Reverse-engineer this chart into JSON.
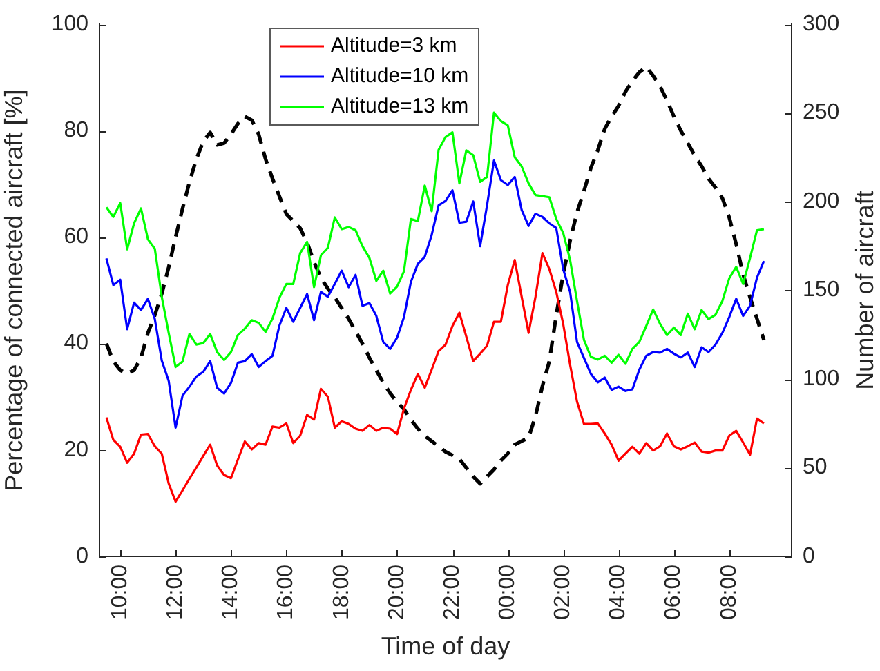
{
  "chart_data": {
    "type": "line",
    "xlabel": "Time of day",
    "ylabel": "Percentage of connected aircraft [%]",
    "y2label": "Number of aircraft",
    "legend": "top",
    "x": [
      "2000-01-01T09:30",
      "2000-01-01T09:45",
      "2000-01-01T10:00",
      "2000-01-01T10:15",
      "2000-01-01T10:30",
      "2000-01-01T10:45",
      "2000-01-01T11:00",
      "2000-01-01T11:15",
      "2000-01-01T11:30",
      "2000-01-01T11:45",
      "2000-01-01T12:00",
      "2000-01-01T12:15",
      "2000-01-01T12:30",
      "2000-01-01T12:45",
      "2000-01-01T13:00",
      "2000-01-01T13:15",
      "2000-01-01T13:30",
      "2000-01-01T13:45",
      "2000-01-01T14:00",
      "2000-01-01T14:15",
      "2000-01-01T14:30",
      "2000-01-01T14:45",
      "2000-01-01T15:00",
      "2000-01-01T15:15",
      "2000-01-01T15:30",
      "2000-01-01T15:45",
      "2000-01-01T16:00",
      "2000-01-01T16:15",
      "2000-01-01T16:30",
      "2000-01-01T16:45",
      "2000-01-01T17:00",
      "2000-01-01T17:15",
      "2000-01-01T17:30",
      "2000-01-01T17:45",
      "2000-01-01T18:00",
      "2000-01-01T18:15",
      "2000-01-01T18:30",
      "2000-01-01T18:45",
      "2000-01-01T19:00",
      "2000-01-01T19:15",
      "2000-01-01T19:30",
      "2000-01-01T19:45",
      "2000-01-01T20:00",
      "2000-01-01T20:15",
      "2000-01-01T20:30",
      "2000-01-01T20:45",
      "2000-01-01T21:00",
      "2000-01-01T21:15",
      "2000-01-01T21:30",
      "2000-01-01T21:45",
      "2000-01-01T22:00",
      "2000-01-01T22:15",
      "2000-01-01T22:30",
      "2000-01-01T22:45",
      "2000-01-01T23:00",
      "2000-01-01T23:15",
      "2000-01-01T23:30",
      "2000-01-01T23:45",
      "2000-01-02T00:00",
      "2000-01-02T00:15",
      "2000-01-02T00:30",
      "2000-01-02T00:45",
      "2000-01-02T01:00",
      "2000-01-02T01:15",
      "2000-01-02T01:30",
      "2000-01-02T01:45",
      "2000-01-02T02:00",
      "2000-01-02T02:15",
      "2000-01-02T02:30",
      "2000-01-02T02:45",
      "2000-01-02T03:00",
      "2000-01-02T03:15",
      "2000-01-02T03:30",
      "2000-01-02T03:45",
      "2000-01-02T04:00",
      "2000-01-02T04:15",
      "2000-01-02T04:30",
      "2000-01-02T04:45",
      "2000-01-02T05:00",
      "2000-01-02T05:15",
      "2000-01-02T05:30",
      "2000-01-02T05:45",
      "2000-01-02T06:00",
      "2000-01-02T06:15",
      "2000-01-02T06:30",
      "2000-01-02T06:45",
      "2000-01-02T07:00",
      "2000-01-02T07:15",
      "2000-01-02T07:30",
      "2000-01-02T07:45",
      "2000-01-02T08:00",
      "2000-01-02T08:15",
      "2000-01-02T08:30",
      "2000-01-02T08:45",
      "2000-01-02T09:00",
      "2000-01-02T09:15"
    ],
    "xlim": [
      "2000-01-01T09:15",
      "2000-01-02T10:15"
    ],
    "xticks": [
      {
        "value": "2000-01-01T10:00",
        "label": "10:00"
      },
      {
        "value": "2000-01-01T12:00",
        "label": "12:00"
      },
      {
        "value": "2000-01-01T14:00",
        "label": "14:00"
      },
      {
        "value": "2000-01-01T16:00",
        "label": "16:00"
      },
      {
        "value": "2000-01-01T18:00",
        "label": "18:00"
      },
      {
        "value": "2000-01-01T20:00",
        "label": "20:00"
      },
      {
        "value": "2000-01-01T22:00",
        "label": "22:00"
      },
      {
        "value": "2000-01-02T00:00",
        "label": "00:00"
      },
      {
        "value": "2000-01-02T02:00",
        "label": "02:00"
      },
      {
        "value": "2000-01-02T04:00",
        "label": "04:00"
      },
      {
        "value": "2000-01-02T06:00",
        "label": "06:00"
      },
      {
        "value": "2000-01-02T08:00",
        "label": "08:00"
      }
    ],
    "ylim": [
      0,
      100
    ],
    "yticks": [
      0,
      20,
      40,
      60,
      80,
      100
    ],
    "y2lim": [
      0,
      300
    ],
    "y2ticks": [
      0,
      50,
      100,
      150,
      200,
      250,
      300
    ],
    "series": [
      {
        "name": "Altitude=3 km",
        "color": "#ff0000",
        "values": [
          26.1,
          21.9,
          20.6,
          17.6,
          19.3,
          22.9,
          23.0,
          20.7,
          19.3,
          13.7,
          10.3,
          12.4,
          14.6,
          16.7,
          18.9,
          21.0,
          17.1,
          15.3,
          14.7,
          18.2,
          21.6,
          20.1,
          21.3,
          21.0,
          24.4,
          24.2,
          25.0,
          21.3,
          22.7,
          26.6,
          25.7,
          31.5,
          30.0,
          24.2,
          25.4,
          24.9,
          24.0,
          23.6,
          24.7,
          23.6,
          24.2,
          24.0,
          23.0,
          27.8,
          31.3,
          34.3,
          31.7,
          35.1,
          38.6,
          39.8,
          43.3,
          45.8,
          41.3,
          36.7,
          38.1,
          39.6,
          44.1,
          44.1,
          51.0,
          55.7,
          48.8,
          42.0,
          48.8,
          57.0,
          54.0,
          49.7,
          43.7,
          36.0,
          29.1,
          24.9,
          24.9,
          25.0,
          23.1,
          21.0,
          18.0,
          19.3,
          20.6,
          19.3,
          21.3,
          19.9,
          20.7,
          23.1,
          20.7,
          20.1,
          20.7,
          21.4,
          19.7,
          19.5,
          19.9,
          19.9,
          22.7,
          23.6,
          21.4,
          19.1,
          25.9,
          25.0
        ]
      },
      {
        "name": "Altitude=10 km",
        "color": "#0000ff",
        "values": [
          56.0,
          51.0,
          52.0,
          42.7,
          47.7,
          46.3,
          48.4,
          44.6,
          36.8,
          33.0,
          24.2,
          30.2,
          31.9,
          33.8,
          34.7,
          36.7,
          31.7,
          30.6,
          32.6,
          36.4,
          36.7,
          38.0,
          35.6,
          36.7,
          37.7,
          43.4,
          46.7,
          44.1,
          46.7,
          49.3,
          44.4,
          49.7,
          48.8,
          51.2,
          53.7,
          50.6,
          52.9,
          47.1,
          47.6,
          45.2,
          40.3,
          39.0,
          41.1,
          45.0,
          51.6,
          55.0,
          56.3,
          60.4,
          66.0,
          66.8,
          68.8,
          62.7,
          62.9,
          66.7,
          58.3,
          66.0,
          74.4,
          70.7,
          69.8,
          71.3,
          65.1,
          62.1,
          64.4,
          63.8,
          62.6,
          61.7,
          54.0,
          49.7,
          40.3,
          37.3,
          34.3,
          32.7,
          33.6,
          31.3,
          31.9,
          31.1,
          31.4,
          35.1,
          37.7,
          38.4,
          38.3,
          39.0,
          38.1,
          37.4,
          38.3,
          35.6,
          39.3,
          38.4,
          39.8,
          42.0,
          45.0,
          48.4,
          45.2,
          47.1,
          52.4,
          55.5
        ]
      },
      {
        "name": "Altitude=13 km",
        "color": "#00ff00",
        "values": [
          65.6,
          63.8,
          66.4,
          57.7,
          62.6,
          65.4,
          59.6,
          57.8,
          48.8,
          42.0,
          35.6,
          36.6,
          41.8,
          39.8,
          40.1,
          41.8,
          38.4,
          36.9,
          38.4,
          41.6,
          42.8,
          44.4,
          43.9,
          42.2,
          44.7,
          48.6,
          51.2,
          51.2,
          57.0,
          59.1,
          50.6,
          56.6,
          58.0,
          63.7,
          61.5,
          61.9,
          61.3,
          58.3,
          56.1,
          51.8,
          53.7,
          49.4,
          50.7,
          53.6,
          63.4,
          63.0,
          69.7,
          64.9,
          76.4,
          78.8,
          79.7,
          70.1,
          76.3,
          75.4,
          70.4,
          71.3,
          83.4,
          81.8,
          81.0,
          75.0,
          73.3,
          70.1,
          67.9,
          67.7,
          67.5,
          63.4,
          60.8,
          55.7,
          48.0,
          40.7,
          37.5,
          37.0,
          37.7,
          36.4,
          37.9,
          36.2,
          39.0,
          40.3,
          43.3,
          46.4,
          43.7,
          41.6,
          43.0,
          41.6,
          45.6,
          42.7,
          46.3,
          44.6,
          45.4,
          48.0,
          52.3,
          54.4,
          51.2,
          56.1,
          61.3,
          61.5
        ]
      },
      {
        "color": "#000000",
        "axis": "y2",
        "line_style": "dashed",
        "values": [
          120,
          110,
          105,
          103,
          105,
          112,
          126,
          136,
          148,
          163,
          180,
          196,
          211,
          224,
          234,
          239,
          232,
          233,
          238,
          244,
          248,
          246,
          238,
          224,
          213,
          203,
          193,
          189,
          185,
          177,
          166,
          157,
          151,
          146,
          140,
          134,
          127,
          120,
          112,
          105,
          98,
          92,
          87,
          83,
          77,
          72,
          68,
          65,
          62,
          59,
          57,
          55,
          50,
          45,
          41,
          45,
          49,
          54,
          58,
          63,
          65,
          67,
          79,
          96,
          110,
          136,
          159,
          178,
          194,
          206,
          219,
          229,
          241,
          248,
          254,
          262,
          268,
          273,
          276,
          271,
          265,
          257,
          248,
          240,
          233,
          226,
          220,
          213,
          208,
          202,
          191,
          176,
          159,
          146,
          134,
          122
        ]
      }
    ]
  }
}
